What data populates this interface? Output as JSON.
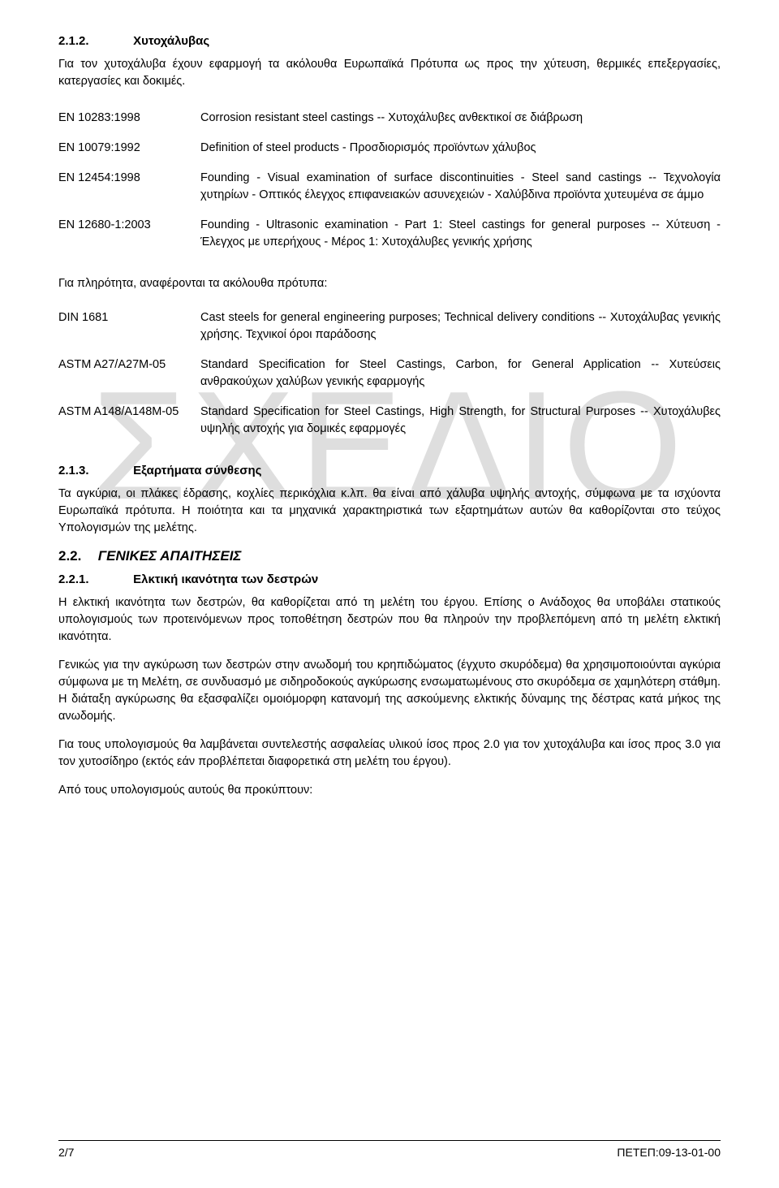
{
  "watermark": "ΣΧΕΔΙΟ",
  "sections": {
    "s212": {
      "num": "2.1.2.",
      "title": "Χυτοχάλυβας",
      "intro": "Για τον χυτοχάλυβα έχουν εφαρμογή τα ακόλουθα Ευρωπαϊκά Πρότυπα ως προς την χύτευση, θερμικές επεξεργασίες, κατεργασίες και δοκιμές.",
      "standards1": [
        {
          "code": "EN 10283:1998",
          "desc": "Corrosion resistant steel castings -- Χυτοχάλυβες ανθεκτικοί σε διάβρωση"
        },
        {
          "code": "EN 10079:1992",
          "desc": "Definition of steel products - Προσδιορισμός προϊόντων χάλυβος"
        },
        {
          "code": "EN 12454:1998",
          "desc": "Founding - Visual examination of surface discontinuities - Steel sand castings -- Τεχνολογία χυτηρίων - Οπτικός έλεγχος επιφανειακών ασυνεχειών - Χαλύβδινα προϊόντα χυτευμένα σε άμμο"
        },
        {
          "code": "EN 12680-1:2003",
          "desc": "Founding - Ultrasonic examination - Part 1: Steel castings for general purposes -- Χύτευση - Έλεγχος με υπερήχους - Μέρος 1: Χυτοχάλυβες γενικής χρήσης"
        }
      ],
      "intertext": "Για πληρότητα, αναφέρονται τα ακόλουθα πρότυπα:",
      "standards2": [
        {
          "code": "DIN 1681",
          "desc": "Cast steels for general engineering purposes; Technical delivery conditions -- Χυτοχάλυβας γενικής χρήσης. Τεχνικοί όροι παράδοσης"
        },
        {
          "code": "ASTM A27/A27M-05",
          "desc": "Standard Specification for Steel Castings, Carbon, for General Application -- Χυτεύσεις ανθρακούχων χαλύβων γενικής εφαρμογής"
        },
        {
          "code": "ASTM A148/A148M-05",
          "desc": "Standard Specification for Steel Castings, High Strength, for Structural Purposes -- Χυτοχάλυβες υψηλής αντοχής για δομικές εφαρμογές"
        }
      ]
    },
    "s213": {
      "num": "2.1.3.",
      "title": "Εξαρτήματα σύνθεσης",
      "para": "Τα αγκύρια, οι πλάκες έδρασης, κοχλίες περικόχλια κ.λπ. θα είναι από χάλυβα υψηλής αντοχής, σύμφωνα με τα ισχύοντα Ευρωπαϊκά πρότυπα. Η ποιότητα και τα μηχανικά χαρακτηριστικά των εξαρτημάτων αυτών θα καθορίζονται στο τεύχος Υπολογισμών της μελέτης."
    },
    "s22": {
      "num": "2.2.",
      "title": "ΓΕΝΙΚΕΣ ΑΠΑΙΤΗΣΕΙΣ"
    },
    "s221": {
      "num": "2.2.1.",
      "title": "Ελκτική ικανότητα των δεστρών",
      "p1": "Η ελκτική ικανότητα των δεστρών, θα καθορίζεται από τη μελέτη του έργου. Επίσης ο Ανάδοχος θα υποβάλει στατικούς υπολογισμούς των προτεινόμενων προς τοποθέτηση δεστρών που θα πληρούν την προβλεπόμενη από τη μελέτη ελκτική ικανότητα.",
      "p2": "Γενικώς για την αγκύρωση των δεστρών στην ανωδομή του κρηπιδώματος (έγχυτο σκυρόδεμα) θα χρησιμοποιούνται αγκύρια σύμφωνα με τη Μελέτη, σε συνδυασμό με σιδηροδοκούς αγκύρωσης ενσωματωμένους στο σκυρόδεμα σε χαμηλότερη στάθμη. Η διάταξη αγκύρωσης θα εξασφαλίζει ομοιόμορφη κατανομή της ασκούμενης ελκτικής δύναμης της δέστρας κατά μήκος της ανωδομής.",
      "p3": "Για τους υπολογισμούς θα λαμβάνεται συντελεστής ασφαλείας υλικού ίσος προς 2.0 για τον χυτοχάλυβα και ίσος προς 3.0 για τον χυτοσίδηρο (εκτός εάν προβλέπεται διαφορετικά στη μελέτη του έργου).",
      "p4": "Από τους υπολογισμούς αυτούς θα προκύπτουν:"
    }
  },
  "footer": {
    "left": "2/7",
    "right": "ΠΕΤΕΠ:09-13-01-00"
  }
}
